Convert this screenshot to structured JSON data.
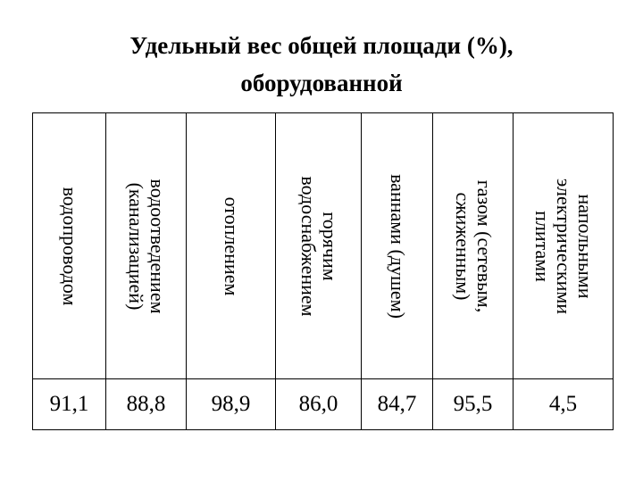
{
  "title": {
    "line1": "Удельный вес общей площади (%),",
    "line2": "оборудованной"
  },
  "columns": [
    {
      "header_lines": [
        "водопроводом"
      ],
      "value": "91,1"
    },
    {
      "header_lines": [
        "водоотведением",
        "(канализацией)"
      ],
      "value": "88,8"
    },
    {
      "header_lines": [
        "отоплением"
      ],
      "value": "98,9"
    },
    {
      "header_lines": [
        "горячим",
        "водоснабжением"
      ],
      "value": "86,0"
    },
    {
      "header_lines": [
        "ваннами (душем)"
      ],
      "value": "84,7"
    },
    {
      "header_lines": [
        "газом (сетевым,",
        "сжиженным)"
      ],
      "value": "95,5"
    },
    {
      "header_lines": [
        "напольными",
        "электрическими",
        "плитами"
      ],
      "value": "4,5"
    }
  ]
}
